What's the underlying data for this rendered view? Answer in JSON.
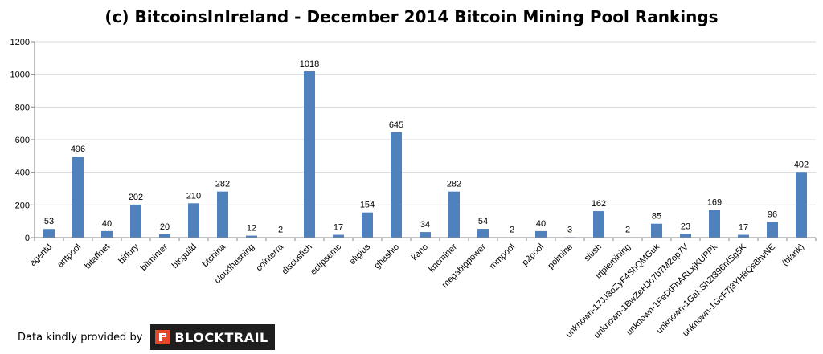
{
  "chart_data": {
    "type": "bar",
    "title": "(c) BitcoinsInIreland - December 2014 Bitcoin Mining Pool Rankings",
    "categories": [
      "agentd",
      "antpool",
      "bitaffnet",
      "bitfury",
      "bitminter",
      "btcguild",
      "btchina",
      "cloudhashing",
      "cointerra",
      "discusfish",
      "eclipsemc",
      "eligius",
      "ghashio",
      "kano",
      "kncminer",
      "megabigpower",
      "mmpool",
      "p2pool",
      "polmine",
      "slush",
      "triplemining",
      "unknown-17JJ3oZyF4ShQMGuk",
      "unknown-1BwZeHJo7b7M2op7V",
      "unknown-1FeDtFhARLxjKUPPk",
      "unknown-1GaKSh2t396nfSg5K",
      "unknown-1GcF7j3YH8Qs8hvNE",
      "(blank)"
    ],
    "values": [
      53,
      496,
      40,
      202,
      20,
      210,
      282,
      12,
      2,
      1018,
      17,
      154,
      645,
      34,
      282,
      54,
      2,
      40,
      3,
      162,
      2,
      85,
      23,
      169,
      17,
      96,
      402
    ],
    "ylim": [
      0,
      1200
    ],
    "yticks": [
      0,
      200,
      400,
      600,
      800,
      1000,
      1200
    ],
    "grid": true,
    "legend": "none",
    "bar_color": "#4f81bd"
  },
  "footer": {
    "credit": "Data kindly provided by",
    "logo_text": "BLOCKTRAIL",
    "logo_color": "#e8472b"
  }
}
